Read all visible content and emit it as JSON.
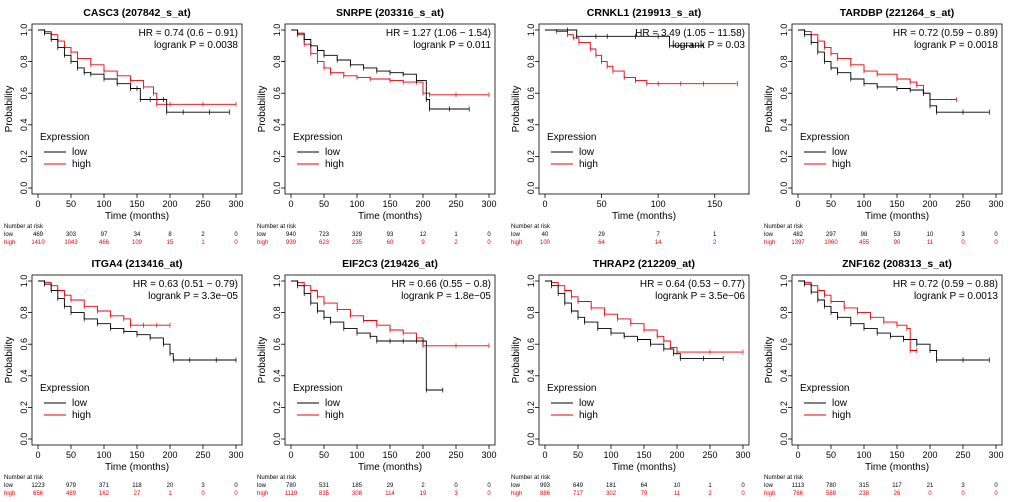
{
  "colors": {
    "low": "#000000",
    "high": "#e8000b"
  },
  "labels": {
    "xlabel": "Time (months)",
    "ylabel": "Probability",
    "legend_title": "Expression",
    "legend_low": "low",
    "legend_high": "high",
    "risk_title": "Number at risk",
    "risk_low": "low",
    "risk_high": "high"
  },
  "chart_data": [
    {
      "type": "line",
      "title": "CASC3 (207842_s_at)",
      "hr_text": "HR = 0.74 (0.6 − 0.91)",
      "p_text": "logrank P = 0.0038",
      "xlim": [
        0,
        300
      ],
      "ylim": [
        0,
        1
      ],
      "xticks": [
        0,
        50,
        100,
        150,
        200,
        250,
        300
      ],
      "yticks": [
        0.0,
        0.2,
        0.4,
        0.6,
        0.8,
        1.0
      ],
      "risk_x": [
        0,
        50,
        100,
        150,
        200,
        250,
        300
      ],
      "risk_low": [
        "469",
        "303",
        "97",
        "34",
        "8",
        "2",
        "0"
      ],
      "risk_high": [
        "1410",
        "1043",
        "466",
        "109",
        "15",
        "1",
        "0"
      ],
      "series": [
        {
          "name": "low",
          "x": [
            0,
            10,
            20,
            30,
            40,
            50,
            60,
            70,
            80,
            100,
            120,
            140,
            150,
            155,
            170,
            190,
            195,
            220,
            260,
            290
          ],
          "y": [
            1.0,
            0.98,
            0.94,
            0.89,
            0.84,
            0.8,
            0.76,
            0.73,
            0.72,
            0.69,
            0.66,
            0.63,
            0.63,
            0.56,
            0.56,
            0.56,
            0.48,
            0.48,
            0.48,
            0.48
          ]
        },
        {
          "name": "high",
          "x": [
            0,
            10,
            20,
            30,
            40,
            50,
            60,
            80,
            100,
            120,
            140,
            160,
            175,
            180,
            200,
            250,
            300
          ],
          "y": [
            1.0,
            0.99,
            0.97,
            0.93,
            0.89,
            0.86,
            0.82,
            0.78,
            0.74,
            0.71,
            0.68,
            0.64,
            0.6,
            0.53,
            0.53,
            0.53,
            0.53
          ]
        }
      ]
    },
    {
      "type": "line",
      "title": "SNRPE (203316_s_at)",
      "hr_text": "HR = 1.27 (1.06 − 1.54)",
      "p_text": "logrank P = 0.011",
      "xlim": [
        0,
        300
      ],
      "ylim": [
        0,
        1
      ],
      "xticks": [
        0,
        50,
        100,
        150,
        200,
        250,
        300
      ],
      "yticks": [
        0.0,
        0.2,
        0.4,
        0.6,
        0.8,
        1.0
      ],
      "risk_x": [
        0,
        50,
        100,
        150,
        200,
        250,
        300
      ],
      "risk_low": [
        "940",
        "723",
        "329",
        "93",
        "12",
        "1",
        "0"
      ],
      "risk_high": [
        "939",
        "623",
        "235",
        "60",
        "9",
        "2",
        "0"
      ],
      "series": [
        {
          "name": "low",
          "x": [
            0,
            10,
            20,
            30,
            40,
            50,
            70,
            90,
            110,
            130,
            150,
            170,
            190,
            205,
            210,
            240,
            270
          ],
          "y": [
            1.0,
            0.98,
            0.94,
            0.9,
            0.87,
            0.84,
            0.81,
            0.78,
            0.76,
            0.74,
            0.73,
            0.72,
            0.68,
            0.56,
            0.5,
            0.5,
            0.5
          ]
        },
        {
          "name": "high",
          "x": [
            0,
            10,
            20,
            30,
            40,
            50,
            60,
            80,
            100,
            120,
            150,
            170,
            190,
            200,
            210,
            250,
            300
          ],
          "y": [
            1.0,
            0.97,
            0.91,
            0.85,
            0.8,
            0.76,
            0.73,
            0.71,
            0.7,
            0.69,
            0.68,
            0.67,
            0.67,
            0.6,
            0.59,
            0.59,
            0.59
          ]
        }
      ]
    },
    {
      "type": "line",
      "title": "CRNKL1 (219913_s_at)",
      "hr_text": "HR = 3.49 (1.05 − 11.58)",
      "p_text": "logrank P = 0.03",
      "xlim": [
        0,
        175
      ],
      "ylim": [
        0,
        1
      ],
      "xticks": [
        0,
        50,
        100,
        150
      ],
      "yticks": [
        0.0,
        0.2,
        0.4,
        0.6,
        0.8,
        1.0
      ],
      "risk_x": [
        0,
        50,
        100,
        150
      ],
      "risk_low": [
        "40",
        "29",
        "7",
        "1"
      ],
      "risk_high": [
        "100",
        "64",
        "14",
        "2"
      ],
      "series": [
        {
          "name": "low",
          "x": [
            0,
            20,
            28,
            45,
            55,
            80,
            100,
            110,
            120,
            130,
            140
          ],
          "y": [
            1.0,
            1.0,
            0.96,
            0.96,
            0.96,
            0.96,
            0.96,
            0.9,
            0.9,
            0.9,
            0.9
          ]
        },
        {
          "name": "high",
          "x": [
            0,
            10,
            20,
            25,
            30,
            40,
            45,
            50,
            55,
            60,
            70,
            80,
            90,
            100,
            120,
            140,
            170
          ],
          "y": [
            1.0,
            0.99,
            0.97,
            0.95,
            0.92,
            0.88,
            0.84,
            0.8,
            0.77,
            0.74,
            0.7,
            0.68,
            0.66,
            0.66,
            0.66,
            0.66,
            0.66
          ]
        }
      ]
    },
    {
      "type": "line",
      "title": "TARDBP (221264_s_at)",
      "hr_text": "HR = 0.72 (0.59 − 0.89)",
      "p_text": "logrank P = 0.0018",
      "xlim": [
        0,
        300
      ],
      "ylim": [
        0,
        1
      ],
      "xticks": [
        0,
        50,
        100,
        150,
        200,
        250,
        300
      ],
      "yticks": [
        0.0,
        0.2,
        0.4,
        0.6,
        0.8,
        1.0
      ],
      "risk_x": [
        0,
        50,
        100,
        150,
        200,
        250,
        300
      ],
      "risk_low": [
        "482",
        "297",
        "98",
        "53",
        "10",
        "3",
        "0"
      ],
      "risk_high": [
        "1397",
        "1060",
        "455",
        "90",
        "11",
        "0",
        "0"
      ],
      "series": [
        {
          "name": "low",
          "x": [
            0,
            10,
            20,
            30,
            40,
            50,
            60,
            80,
            100,
            120,
            150,
            170,
            190,
            200,
            210,
            250,
            290
          ],
          "y": [
            1.0,
            0.97,
            0.92,
            0.86,
            0.8,
            0.76,
            0.73,
            0.69,
            0.66,
            0.64,
            0.63,
            0.62,
            0.6,
            0.52,
            0.48,
            0.48,
            0.48
          ]
        },
        {
          "name": "high",
          "x": [
            0,
            10,
            20,
            30,
            40,
            50,
            60,
            80,
            100,
            120,
            150,
            170,
            180,
            190,
            200,
            240
          ],
          "y": [
            1.0,
            0.99,
            0.97,
            0.93,
            0.89,
            0.85,
            0.82,
            0.78,
            0.74,
            0.72,
            0.69,
            0.67,
            0.65,
            0.6,
            0.56,
            0.56
          ]
        }
      ]
    },
    {
      "type": "line",
      "title": "ITGA4 (213416_at)",
      "hr_text": "HR = 0.63 (0.51 − 0.79)",
      "p_text": "logrank P = 3.3e−05",
      "xlim": [
        0,
        300
      ],
      "ylim": [
        0,
        1
      ],
      "xticks": [
        0,
        50,
        100,
        150,
        200,
        250,
        300
      ],
      "yticks": [
        0.0,
        0.2,
        0.4,
        0.6,
        0.8,
        1.0
      ],
      "risk_x": [
        0,
        50,
        100,
        150,
        200,
        250,
        300
      ],
      "risk_low": [
        "1223",
        "979",
        "371",
        "118",
        "20",
        "3",
        "0"
      ],
      "risk_high": [
        "656",
        "489",
        "162",
        "27",
        "1",
        "0",
        "0"
      ],
      "series": [
        {
          "name": "low",
          "x": [
            0,
            10,
            20,
            30,
            40,
            50,
            70,
            90,
            110,
            130,
            150,
            170,
            190,
            200,
            205,
            230,
            270,
            300
          ],
          "y": [
            1.0,
            0.98,
            0.94,
            0.89,
            0.84,
            0.8,
            0.76,
            0.73,
            0.7,
            0.68,
            0.66,
            0.64,
            0.6,
            0.54,
            0.5,
            0.5,
            0.5,
            0.5
          ]
        },
        {
          "name": "high",
          "x": [
            0,
            10,
            20,
            30,
            40,
            50,
            70,
            90,
            110,
            130,
            140,
            160,
            180,
            200
          ],
          "y": [
            1.0,
            0.99,
            0.97,
            0.94,
            0.91,
            0.88,
            0.84,
            0.81,
            0.78,
            0.76,
            0.72,
            0.72,
            0.72,
            0.72
          ]
        }
      ]
    },
    {
      "type": "line",
      "title": "EIF2C3 (219426_at)",
      "hr_text": "HR = 0.66 (0.55 − 0.8)",
      "p_text": "logrank P = 1.8e−05",
      "xlim": [
        0,
        300
      ],
      "ylim": [
        0,
        1
      ],
      "xticks": [
        0,
        50,
        100,
        150,
        200,
        250,
        300
      ],
      "yticks": [
        0.0,
        0.2,
        0.4,
        0.6,
        0.8,
        1.0
      ],
      "risk_x": [
        0,
        50,
        100,
        150,
        200,
        250,
        300
      ],
      "risk_low": [
        "780",
        "531",
        "185",
        "29",
        "2",
        "0",
        "0"
      ],
      "risk_high": [
        "1119",
        "835",
        "308",
        "114",
        "19",
        "3",
        "0"
      ],
      "series": [
        {
          "name": "low",
          "x": [
            0,
            10,
            20,
            30,
            40,
            50,
            60,
            80,
            100,
            120,
            130,
            150,
            170,
            190,
            200,
            205,
            230
          ],
          "y": [
            1.0,
            0.97,
            0.92,
            0.86,
            0.81,
            0.77,
            0.74,
            0.7,
            0.67,
            0.65,
            0.62,
            0.62,
            0.62,
            0.62,
            0.62,
            0.31,
            0.31
          ]
        },
        {
          "name": "high",
          "x": [
            0,
            10,
            20,
            30,
            40,
            50,
            70,
            90,
            110,
            130,
            150,
            170,
            190,
            200,
            250,
            300
          ],
          "y": [
            1.0,
            0.99,
            0.97,
            0.94,
            0.9,
            0.86,
            0.82,
            0.78,
            0.75,
            0.72,
            0.69,
            0.67,
            0.64,
            0.59,
            0.59,
            0.59
          ]
        }
      ]
    },
    {
      "type": "line",
      "title": "THRAP2 (212209_at)",
      "hr_text": "HR = 0.64 (0.53 − 0.77)",
      "p_text": "logrank P = 3.5e−06",
      "xlim": [
        0,
        300
      ],
      "ylim": [
        0,
        1
      ],
      "xticks": [
        0,
        50,
        100,
        150,
        200,
        250,
        300
      ],
      "yticks": [
        0.0,
        0.2,
        0.4,
        0.6,
        0.8,
        1.0
      ],
      "risk_x": [
        0,
        50,
        100,
        150,
        200,
        250,
        300
      ],
      "risk_low": [
        "993",
        "649",
        "181",
        "64",
        "10",
        "1",
        "0"
      ],
      "risk_high": [
        "886",
        "717",
        "302",
        "79",
        "11",
        "2",
        "0"
      ],
      "series": [
        {
          "name": "low",
          "x": [
            0,
            10,
            20,
            30,
            40,
            50,
            60,
            80,
            100,
            120,
            140,
            160,
            180,
            195,
            205,
            240,
            270
          ],
          "y": [
            1.0,
            0.97,
            0.92,
            0.86,
            0.81,
            0.77,
            0.74,
            0.7,
            0.67,
            0.65,
            0.63,
            0.6,
            0.57,
            0.54,
            0.51,
            0.51,
            0.51
          ]
        },
        {
          "name": "high",
          "x": [
            0,
            10,
            20,
            30,
            40,
            50,
            70,
            90,
            110,
            130,
            150,
            170,
            180,
            190,
            200,
            250,
            300
          ],
          "y": [
            1.0,
            0.99,
            0.97,
            0.94,
            0.9,
            0.87,
            0.83,
            0.79,
            0.76,
            0.73,
            0.69,
            0.65,
            0.62,
            0.58,
            0.55,
            0.55,
            0.55
          ]
        }
      ]
    },
    {
      "type": "line",
      "title": "ZNF162 (208313_s_at)",
      "hr_text": "HR = 0.72 (0.59 − 0.88)",
      "p_text": "logrank P = 0.0013",
      "xlim": [
        0,
        300
      ],
      "ylim": [
        0,
        1
      ],
      "xticks": [
        0,
        50,
        100,
        150,
        200,
        250,
        300
      ],
      "yticks": [
        0.0,
        0.2,
        0.4,
        0.6,
        0.8,
        1.0
      ],
      "risk_x": [
        0,
        50,
        100,
        150,
        200,
        250,
        300
      ],
      "risk_low": [
        "1113",
        "780",
        "315",
        "117",
        "21",
        "3",
        "0"
      ],
      "risk_high": [
        "766",
        "588",
        "238",
        "26",
        "0",
        "0",
        "0"
      ],
      "series": [
        {
          "name": "low",
          "x": [
            0,
            10,
            20,
            30,
            40,
            50,
            60,
            80,
            100,
            120,
            140,
            160,
            180,
            200,
            210,
            250,
            290
          ],
          "y": [
            1.0,
            0.98,
            0.93,
            0.88,
            0.84,
            0.8,
            0.77,
            0.73,
            0.7,
            0.67,
            0.65,
            0.63,
            0.6,
            0.56,
            0.5,
            0.5,
            0.5
          ]
        },
        {
          "name": "high",
          "x": [
            0,
            10,
            20,
            30,
            40,
            50,
            70,
            90,
            110,
            130,
            150,
            165,
            170,
            180
          ],
          "y": [
            1.0,
            0.99,
            0.97,
            0.94,
            0.91,
            0.87,
            0.83,
            0.8,
            0.77,
            0.74,
            0.72,
            0.7,
            0.56,
            0.56
          ]
        }
      ]
    }
  ]
}
